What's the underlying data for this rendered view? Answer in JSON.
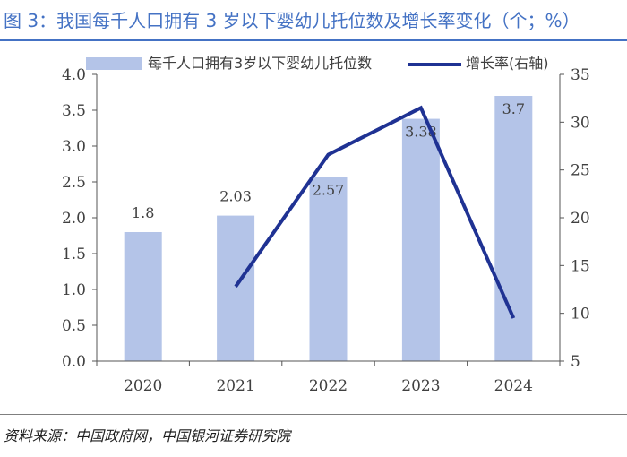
{
  "header": {
    "title": "图 3：我国每千人口拥有 3 岁以下婴幼儿托位数及增长率变化（个；%）"
  },
  "colors": {
    "title": "#4472c4",
    "bar": "#b4c4e8",
    "line": "#1f3293",
    "axis": "#555555",
    "text": "#404040"
  },
  "chart_data": {
    "type": "bar",
    "categories": [
      "2020",
      "2021",
      "2022",
      "2023",
      "2024"
    ],
    "series": [
      {
        "name": "每千人口拥有3岁以下婴幼儿托位数",
        "kind": "bar",
        "axis": "left",
        "values": [
          1.8,
          2.03,
          2.57,
          3.38,
          3.7
        ],
        "labels": [
          "1.8",
          "2.03",
          "2.57",
          "3.38",
          "3.7"
        ]
      },
      {
        "name": "增长率(右轴)",
        "kind": "line",
        "axis": "right",
        "values": [
          null,
          12.8,
          26.6,
          31.5,
          9.5
        ]
      }
    ],
    "y_left": {
      "min": 0,
      "max": 4.0,
      "ticks": [
        "0.0",
        "0.5",
        "1.0",
        "1.5",
        "2.0",
        "2.5",
        "3.0",
        "3.5",
        "4.0"
      ]
    },
    "y_right": {
      "min": 5,
      "max": 35,
      "ticks": [
        "5",
        "10",
        "15",
        "20",
        "25",
        "30",
        "35"
      ]
    },
    "legend_position": "top"
  },
  "footer": {
    "source": "资料来源：中国政府网，中国银河证券研究院"
  }
}
